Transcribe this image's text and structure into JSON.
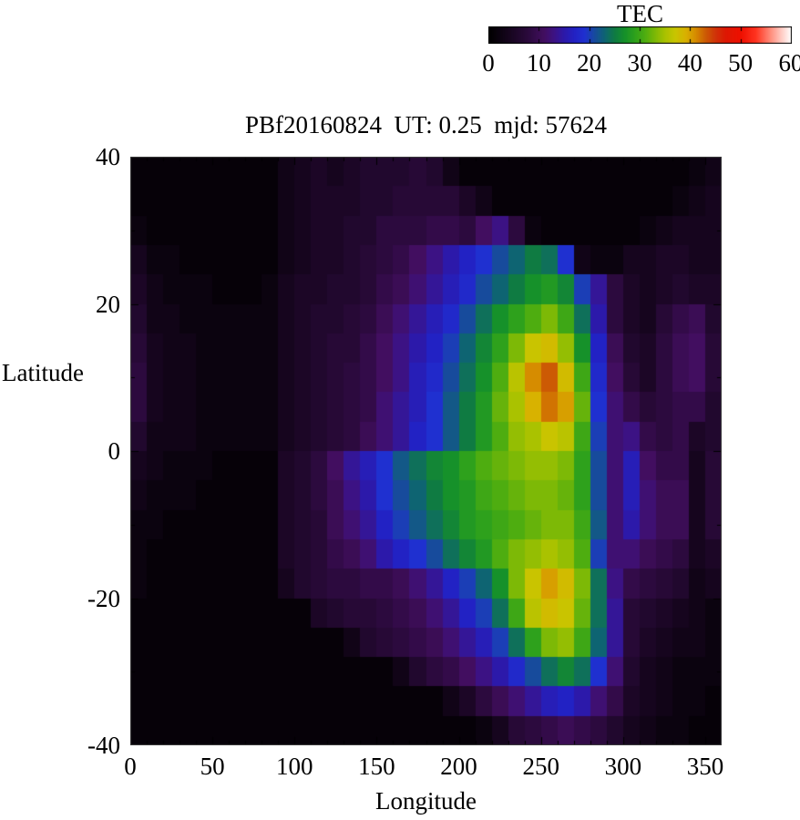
{
  "title": "PBf20160824  UT: 0.25  mjd: 57624",
  "colorbar": {
    "label": "TEC",
    "min": 0,
    "max": 60,
    "ticks": [
      0,
      10,
      20,
      30,
      40,
      50,
      60
    ]
  },
  "axes": {
    "xlabel": "Longitude",
    "ylabel": "Latitude",
    "xlim": [
      0,
      360
    ],
    "ylim": [
      -40,
      40
    ],
    "x_major_ticks": [
      0,
      50,
      100,
      150,
      200,
      250,
      300,
      350
    ],
    "x_minor_step": 10,
    "y_major_ticks": [
      40,
      20,
      0,
      -20,
      -40
    ],
    "y_minor_step": 10
  },
  "chart_data": {
    "type": "heatmap",
    "title": "PBf20160824  UT: 0.25  mjd: 57624",
    "xlabel": "Longitude",
    "ylabel": "Latitude",
    "value_label": "TEC",
    "xlim": [
      0,
      360
    ],
    "ylim": [
      -40,
      40
    ],
    "vmin": 0,
    "vmax": 60,
    "lon_start": 0,
    "lon_step": 10,
    "lat_start": 40,
    "lat_step": -4,
    "palette_stops": [
      [
        0,
        "#000000"
      ],
      [
        4,
        "#16051e"
      ],
      [
        8,
        "#2c0a3e"
      ],
      [
        11,
        "#420e60"
      ],
      [
        13,
        "#3c1284"
      ],
      [
        15,
        "#2c19aa"
      ],
      [
        17,
        "#2222c4"
      ],
      [
        19,
        "#1f30d0"
      ],
      [
        21,
        "#174b9c"
      ],
      [
        23,
        "#0e6472"
      ],
      [
        25,
        "#0f7b42"
      ],
      [
        27,
        "#16912a"
      ],
      [
        29,
        "#2ea11c"
      ],
      [
        31,
        "#4ead10"
      ],
      [
        33,
        "#7db906"
      ],
      [
        35,
        "#aac200"
      ],
      [
        37,
        "#c9c400"
      ],
      [
        39,
        "#d8b200"
      ],
      [
        41,
        "#d68c00"
      ],
      [
        43,
        "#cc5a04"
      ],
      [
        45,
        "#d03208"
      ],
      [
        47,
        "#dd1803"
      ],
      [
        50,
        "#ef0f00"
      ],
      [
        53,
        "#ff3420"
      ],
      [
        56,
        "#ff9180"
      ],
      [
        58,
        "#ffcac2"
      ],
      [
        60,
        "#ffffff"
      ]
    ],
    "values": [
      [
        1,
        1,
        1,
        1,
        1,
        1,
        1,
        1,
        1,
        3,
        4,
        5,
        4,
        5,
        6,
        6,
        6,
        7,
        6,
        3,
        1,
        1,
        1,
        1,
        1,
        1,
        1,
        1,
        1,
        1,
        1,
        1,
        1,
        1,
        2,
        3
      ],
      [
        1,
        1,
        1,
        1,
        1,
        1,
        1,
        1,
        1,
        3,
        4,
        5,
        5,
        5,
        6,
        6,
        7,
        7,
        7,
        7,
        5,
        3,
        1,
        1,
        1,
        1,
        1,
        1,
        1,
        1,
        1,
        1,
        1,
        2,
        3,
        4
      ],
      [
        2,
        1,
        1,
        1,
        1,
        1,
        1,
        1,
        1,
        3,
        4,
        5,
        5,
        6,
        6,
        8,
        8,
        8,
        9,
        9,
        8,
        11,
        13,
        8,
        2,
        1,
        1,
        1,
        1,
        1,
        1,
        2,
        3,
        4,
        4,
        4
      ],
      [
        4,
        2,
        2,
        1,
        1,
        1,
        1,
        1,
        1,
        3,
        4,
        5,
        5,
        6,
        7,
        8,
        9,
        11,
        13,
        15,
        17,
        19,
        21,
        23,
        25,
        24,
        19,
        3,
        2,
        2,
        4,
        4,
        5,
        5,
        4,
        4
      ],
      [
        5,
        3,
        2,
        2,
        2,
        1,
        1,
        1,
        2,
        4,
        5,
        5,
        6,
        6,
        7,
        9,
        10,
        12,
        14,
        16,
        18,
        21,
        23,
        25,
        27,
        28,
        26,
        20,
        14,
        8,
        5,
        4,
        5,
        6,
        5,
        5
      ],
      [
        6,
        3,
        3,
        2,
        2,
        2,
        2,
        2,
        2,
        4,
        5,
        6,
        6,
        7,
        8,
        10,
        12,
        14,
        16,
        18,
        21,
        24,
        27,
        29,
        31,
        33,
        30,
        24,
        15,
        8,
        5,
        4,
        7,
        9,
        10,
        6
      ],
      [
        7,
        4,
        3,
        3,
        2,
        2,
        2,
        2,
        2,
        4,
        5,
        6,
        7,
        7,
        9,
        11,
        13,
        15,
        17,
        20,
        23,
        26,
        29,
        33,
        37,
        38,
        34,
        27,
        17,
        10,
        6,
        5,
        8,
        10,
        11,
        7
      ],
      [
        8,
        4,
        3,
        3,
        2,
        2,
        2,
        2,
        2,
        4,
        5,
        6,
        7,
        8,
        9,
        11,
        13,
        16,
        18,
        21,
        24,
        27,
        31,
        36,
        41,
        43,
        38,
        30,
        18,
        11,
        7,
        5,
        8,
        10,
        11,
        7
      ],
      [
        8,
        4,
        3,
        3,
        2,
        2,
        2,
        2,
        2,
        4,
        5,
        6,
        7,
        8,
        9,
        12,
        14,
        16,
        19,
        22,
        25,
        28,
        32,
        35,
        39,
        42,
        40,
        32,
        19,
        12,
        9,
        7,
        8,
        9,
        9,
        6
      ],
      [
        6,
        3,
        3,
        3,
        2,
        2,
        2,
        2,
        2,
        4,
        5,
        6,
        7,
        8,
        10,
        12,
        14,
        17,
        19,
        22,
        25,
        28,
        31,
        34,
        35,
        37,
        36,
        30,
        20,
        12,
        13,
        9,
        8,
        9,
        5,
        6
      ],
      [
        4,
        3,
        2,
        2,
        2,
        1,
        1,
        1,
        1,
        5,
        6,
        8,
        11,
        14,
        16,
        19,
        22,
        24,
        26,
        27,
        29,
        31,
        32,
        33,
        34,
        34,
        33,
        29,
        21,
        12,
        16,
        11,
        9,
        9,
        4,
        7
      ],
      [
        3,
        2,
        2,
        2,
        1,
        1,
        1,
        1,
        1,
        5,
        6,
        8,
        10,
        13,
        15,
        19,
        21,
        23,
        25,
        27,
        28,
        30,
        31,
        32,
        33,
        33,
        32,
        29,
        21,
        12,
        16,
        12,
        10,
        10,
        4,
        7
      ],
      [
        2,
        2,
        1,
        1,
        1,
        1,
        1,
        1,
        1,
        5,
        6,
        7,
        10,
        12,
        14,
        17,
        20,
        22,
        24,
        26,
        28,
        29,
        30,
        31,
        32,
        33,
        33,
        30,
        22,
        12,
        15,
        12,
        10,
        10,
        4,
        7
      ],
      [
        2,
        1,
        1,
        1,
        1,
        1,
        1,
        1,
        1,
        5,
        6,
        7,
        9,
        10,
        12,
        15,
        17,
        19,
        21,
        24,
        26,
        28,
        31,
        33,
        34,
        35,
        34,
        31,
        20,
        12,
        12,
        10,
        9,
        8,
        4,
        5
      ],
      [
        2,
        1,
        1,
        1,
        1,
        1,
        1,
        1,
        1,
        4,
        6,
        7,
        8,
        8,
        9,
        9,
        10,
        12,
        14,
        17,
        20,
        23,
        27,
        33,
        37,
        40,
        38,
        33,
        24,
        13,
        9,
        8,
        7,
        6,
        3,
        4
      ],
      [
        1,
        1,
        1,
        1,
        1,
        1,
        1,
        1,
        1,
        1,
        1,
        5,
        6,
        7,
        7,
        8,
        9,
        10,
        12,
        14,
        17,
        20,
        24,
        30,
        36,
        38,
        37,
        32,
        24,
        14,
        7,
        6,
        5,
        4,
        3,
        2
      ],
      [
        1,
        1,
        1,
        1,
        1,
        1,
        1,
        1,
        1,
        1,
        1,
        1,
        1,
        3,
        6,
        7,
        8,
        9,
        10,
        12,
        14,
        16,
        20,
        24,
        29,
        33,
        34,
        30,
        23,
        14,
        7,
        5,
        4,
        3,
        3,
        2
      ],
      [
        1,
        1,
        1,
        1,
        1,
        1,
        1,
        1,
        1,
        1,
        1,
        1,
        1,
        1,
        1,
        1,
        3,
        6,
        8,
        9,
        11,
        13,
        15,
        18,
        21,
        24,
        26,
        24,
        19,
        12,
        6,
        4,
        3,
        2,
        2,
        2
      ],
      [
        1,
        1,
        1,
        1,
        1,
        1,
        1,
        1,
        1,
        1,
        1,
        1,
        1,
        1,
        1,
        1,
        1,
        1,
        1,
        3,
        5,
        8,
        10,
        12,
        14,
        16,
        17,
        15,
        12,
        9,
        5,
        4,
        3,
        2,
        2,
        1
      ],
      [
        1,
        1,
        1,
        1,
        1,
        1,
        1,
        1,
        1,
        1,
        1,
        1,
        1,
        1,
        1,
        1,
        1,
        1,
        1,
        1,
        1,
        2,
        4,
        7,
        8,
        9,
        10,
        9,
        8,
        6,
        4,
        3,
        2,
        2,
        1,
        1
      ]
    ]
  }
}
